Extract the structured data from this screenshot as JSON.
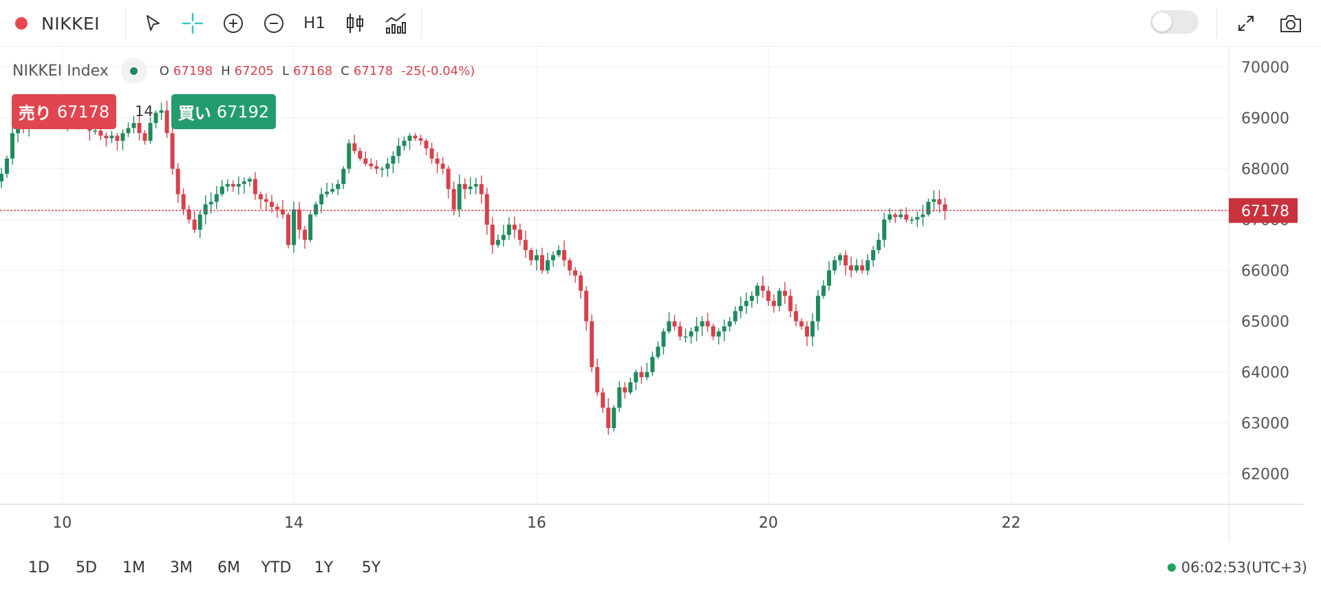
{
  "toolbar": {
    "symbol": "NIKKEI",
    "interval": "H1",
    "icons": [
      "cursor-icon",
      "crosshair-icon",
      "zoom-in-icon",
      "zoom-out-icon",
      "candles-icon",
      "indicators-icon",
      "fullscreen-icon",
      "camera-icon"
    ]
  },
  "legend": {
    "title": "NIKKEI Index",
    "o_label": "O",
    "o": "67198",
    "h_label": "H",
    "h": "67205",
    "l_label": "L",
    "l": "67168",
    "c_label": "C",
    "c": "67178",
    "change": "-25(-0.04%)"
  },
  "trade": {
    "sell_label": "売り",
    "sell_price": "67178",
    "spread": "14",
    "buy_label": "買い",
    "buy_price": "67192"
  },
  "colors": {
    "up": "#1f8a5e",
    "down": "#d6414c",
    "accent": "#2ec7c9"
  },
  "chart_data": {
    "type": "candlestick",
    "x_ticks": [
      {
        "label": "10",
        "index": 11
      },
      {
        "label": "14",
        "index": 53
      },
      {
        "label": "16",
        "index": 97
      },
      {
        "label": "20",
        "index": 139
      },
      {
        "label": "22",
        "index": 183
      }
    ],
    "y_ticks": [
      "70000",
      "69000",
      "68000",
      "67000",
      "66000",
      "65000",
      "64000",
      "63000",
      "62000"
    ],
    "ylim": [
      61400,
      70400
    ],
    "last_price": "67178",
    "grid": true,
    "closes": [
      67900,
      68200,
      68700,
      68850,
      68800,
      68850,
      68900,
      68950,
      68900,
      68950,
      69000,
      69000,
      68850,
      68900,
      68950,
      68900,
      68750,
      68750,
      68650,
      68600,
      68650,
      68550,
      68700,
      68800,
      68900,
      68700,
      68550,
      68900,
      69100,
      69150,
      68700,
      68000,
      67500,
      67200,
      67000,
      66800,
      67100,
      67300,
      67350,
      67500,
      67650,
      67700,
      67650,
      67700,
      67750,
      67800,
      67500,
      67400,
      67350,
      67250,
      67200,
      67100,
      66500,
      67200,
      66800,
      66600,
      67100,
      67300,
      67500,
      67550,
      67600,
      67700,
      68000,
      68500,
      68350,
      68200,
      68100,
      68050,
      68000,
      68000,
      68100,
      68250,
      68450,
      68550,
      68650,
      68600,
      68550,
      68400,
      68200,
      68100,
      68000,
      67600,
      67200,
      67700,
      67600,
      67650,
      67700,
      67500,
      66900,
      66500,
      66600,
      66700,
      66900,
      66800,
      66600,
      66400,
      66200,
      66300,
      66000,
      66200,
      66300,
      66400,
      66200,
      66000,
      65900,
      65600,
      65000,
      64100,
      63600,
      63300,
      62900,
      63300,
      63700,
      63600,
      63800,
      64000,
      63900,
      64000,
      64300,
      64500,
      64800,
      65000,
      64900,
      64700,
      64700,
      64800,
      64900,
      65000,
      64900,
      64700,
      64800,
      64900,
      65000,
      65200,
      65300,
      65400,
      65500,
      65700,
      65600,
      65400,
      65300,
      65600,
      65500,
      65200,
      65000,
      64900,
      64700,
      65000,
      65500,
      65700,
      66000,
      66200,
      66300,
      66100,
      66000,
      66100,
      66000,
      66200,
      66400,
      66600,
      67000,
      67100,
      67050,
      67100,
      67000,
      67000,
      67050,
      67100,
      67350,
      67400,
      67300,
      67178
    ],
    "range_selector": [
      "1D",
      "5D",
      "1M",
      "3M",
      "6M",
      "YTD",
      "1Y",
      "5Y"
    ]
  },
  "status": {
    "time": "06:02:53(UTC+3)"
  }
}
